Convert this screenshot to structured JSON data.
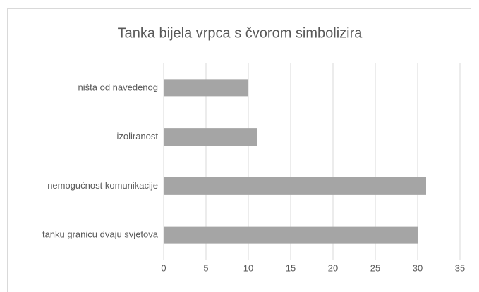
{
  "chart_data": {
    "type": "bar",
    "orientation": "horizontal",
    "title": "Tanka bijela vrpca s čvorom simbolizira",
    "categories": [
      "ništa od navedenog",
      "izoliranost",
      "nemogućnost komunikacije",
      "tanku granicu dvaju svjetova"
    ],
    "values": [
      10,
      11,
      31,
      30
    ],
    "color": "#a5a5a5",
    "xlim": [
      0,
      35
    ],
    "xticks": [
      0,
      5,
      10,
      15,
      20,
      25,
      30,
      35
    ],
    "grid": true
  }
}
